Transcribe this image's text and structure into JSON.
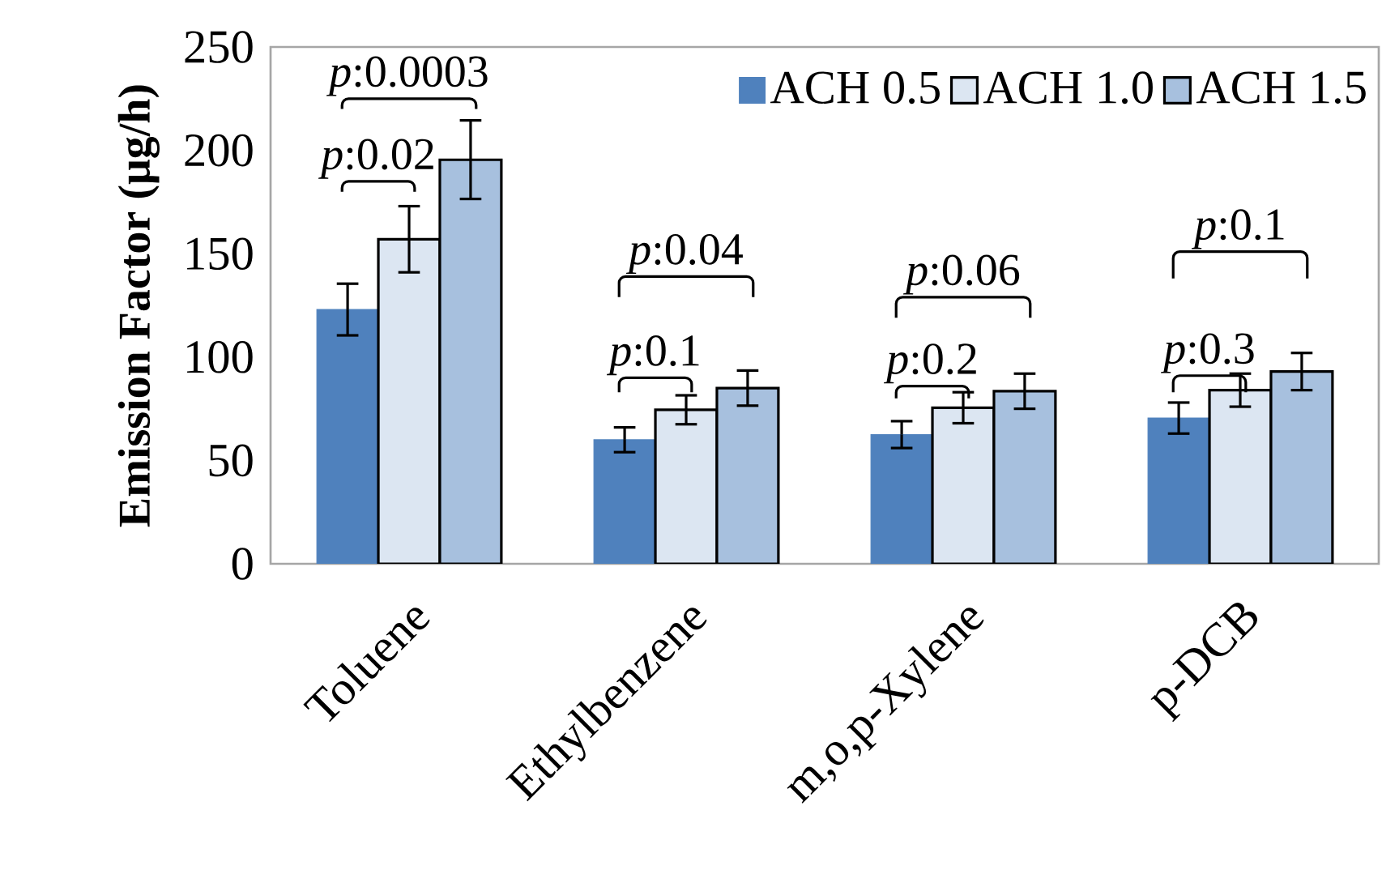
{
  "chart_data": {
    "type": "bar",
    "ylabel": "Emission Factor (μg/h)",
    "categories": [
      "Toluene",
      "Ethylbenzene",
      "m,o,p-Xylene",
      "p-DCB"
    ],
    "series": [
      {
        "name": "ACH 0.5",
        "color": "#4f81bd",
        "values": [
          123,
          60,
          62.5,
          70.5
        ],
        "errors": [
          12.5,
          6,
          6.5,
          7.5
        ]
      },
      {
        "name": "ACH 1.0",
        "color": "#dce6f2",
        "values": [
          157,
          74.5,
          75.5,
          84
        ],
        "errors": [
          16,
          7,
          7.5,
          8
        ]
      },
      {
        "name": "ACH 1.5",
        "color": "#a7c0de",
        "values": [
          195.5,
          85,
          83.5,
          93
        ],
        "errors": [
          19,
          8.5,
          8.5,
          9
        ]
      }
    ],
    "ylim": [
      0,
      250
    ],
    "yticks": [
      0,
      50,
      100,
      150,
      200,
      250
    ],
    "legend": "top right",
    "grid": false,
    "annotations": [
      "*p*:0.02",
      "*p*:0.0003",
      "*p*:0.1",
      "*p*:0.04",
      "*p*:0.2",
      "*p*:0.06",
      "*p*:0.3",
      "*p*:0.1"
    ]
  }
}
